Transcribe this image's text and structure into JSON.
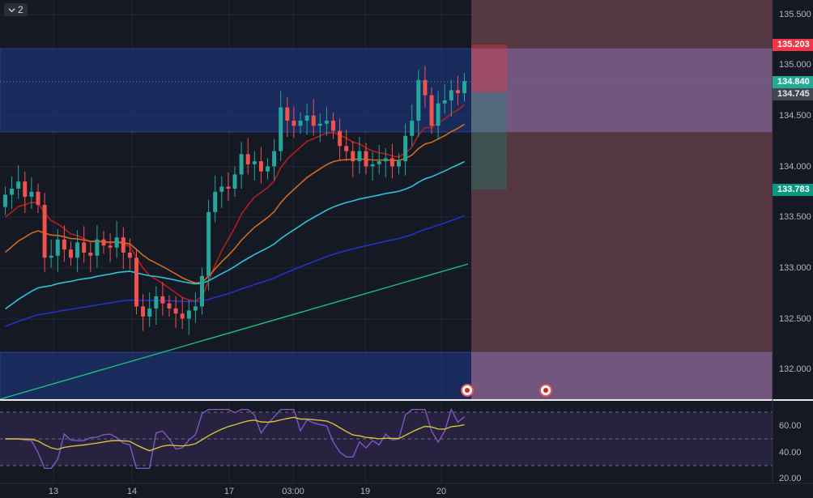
{
  "chart_badge": {
    "label": "2",
    "icon": "chevron-down-icon"
  },
  "price_axis": {
    "ticks": [
      "135.500",
      "135.000",
      "134.500",
      "134.000",
      "133.500",
      "133.000",
      "132.500",
      "132.000"
    ]
  },
  "price_tags": {
    "target": {
      "label": "135.203",
      "color": "#f23645"
    },
    "current": {
      "label": "134.840",
      "color": "#22ab94"
    },
    "entry": {
      "label": "134.745",
      "color": "#434651"
    },
    "stop": {
      "label": "133.783",
      "color": "#089981"
    }
  },
  "rsi_axis": {
    "ticks": [
      "60.00",
      "40.00",
      "20.00"
    ]
  },
  "time_axis": {
    "ticks": [
      "13",
      "14",
      "17",
      "03:00",
      "19",
      "20"
    ]
  },
  "colors": {
    "bull": "#26a69a",
    "bear": "#ef5350",
    "ema_red": "#b71c1c",
    "ema_orange": "#d2691e",
    "ema_teal": "#26c6da",
    "ema_blue": "#2430c8",
    "trend_green": "#1fbf7a",
    "rsi": "#7e57c2",
    "rsi_ma": "#d4c238"
  },
  "markers": [
    {
      "name": "alert-marker-icon"
    },
    {
      "name": "alert-marker-icon"
    }
  ]
}
